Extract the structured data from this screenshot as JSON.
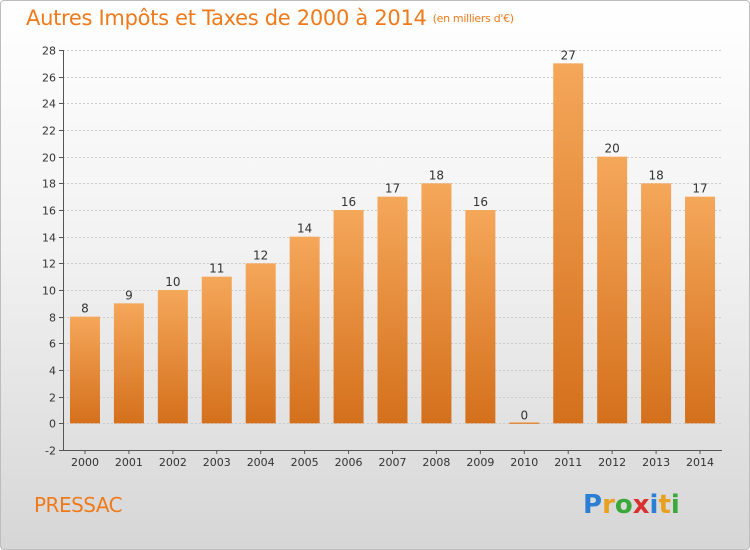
{
  "title": "Autres Impôts et Taxes de 2000 à 2014",
  "unit": "(en milliers d'€)",
  "place": "PRESSAC",
  "logo": {
    "letters": [
      "P",
      "r",
      "o",
      "x",
      "i",
      "t",
      "i"
    ],
    "colors": [
      "#2a7fd4",
      "#e8a020",
      "#3aa83a",
      "#d93030",
      "#2a7fd4",
      "#e8a020",
      "#3aa83a"
    ]
  },
  "colors": {
    "bar_top": "#f5a75a",
    "bar_bottom": "#d4701c",
    "title": "#f07a1a",
    "grid": "#cccccc"
  },
  "chart_data": {
    "type": "bar",
    "title": "Autres Impôts et Taxes de 2000 à 2014",
    "xlabel": "",
    "ylabel": "",
    "categories": [
      "2000",
      "2001",
      "2002",
      "2003",
      "2004",
      "2005",
      "2006",
      "2007",
      "2008",
      "2009",
      "2010",
      "2011",
      "2012",
      "2013",
      "2014"
    ],
    "values": [
      8,
      9,
      10,
      11,
      12,
      14,
      16,
      17,
      18,
      16,
      0,
      27,
      20,
      18,
      17
    ],
    "ylim": [
      -2,
      28
    ],
    "yticks": [
      -2,
      0,
      2,
      4,
      6,
      8,
      10,
      12,
      14,
      16,
      18,
      20,
      22,
      24,
      26,
      28
    ],
    "grid": true,
    "legend": "none"
  }
}
